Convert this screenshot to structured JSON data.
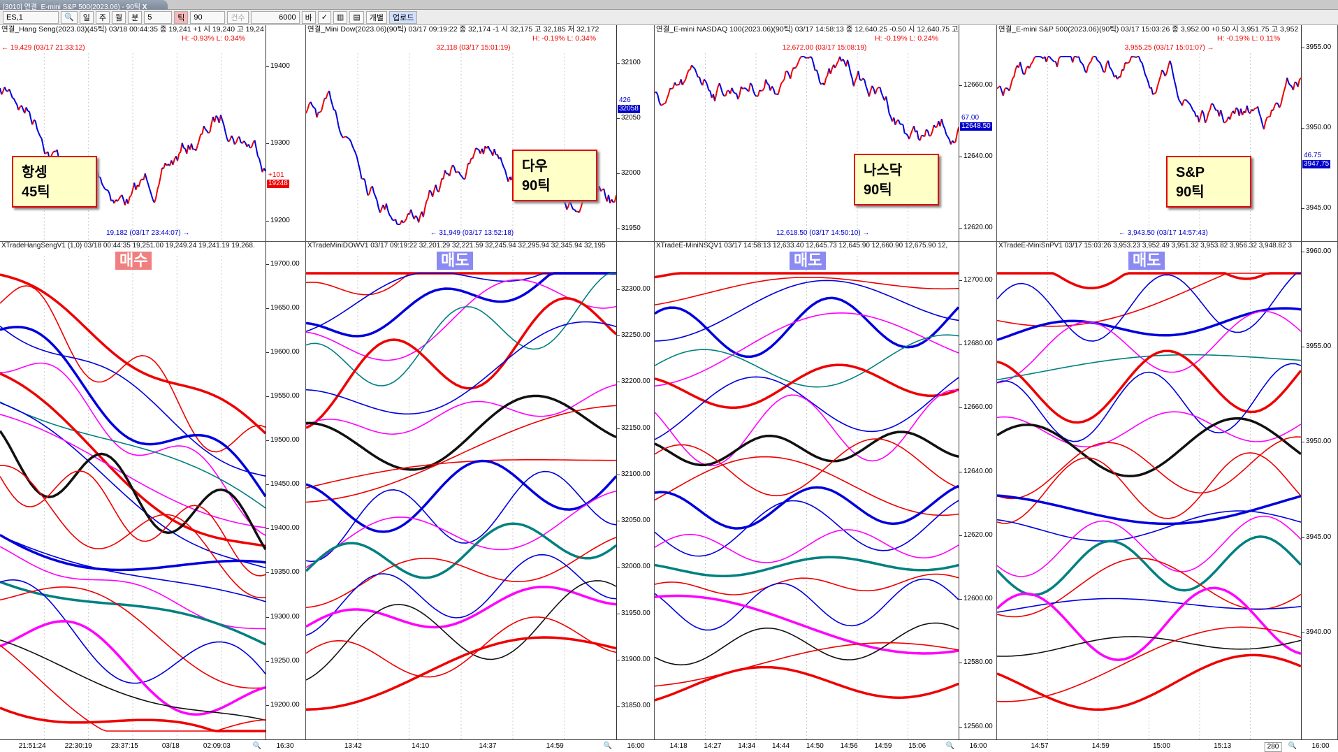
{
  "window": {
    "title": "[3010] 연결_E-mini S&P 500(2023.06) - 90틱",
    "close_label": "X"
  },
  "toolbar": {
    "symbol": "ES,1",
    "day": "일",
    "week": "주",
    "month": "월",
    "minute": "분",
    "minute_val": "5",
    "tick": "틱",
    "tick_val": "90",
    "count": "건수",
    "count_val": "6000",
    "bar": "바",
    "individual": "개별",
    "upload": "업로드"
  },
  "colors": {
    "up": "#ff0000",
    "down": "#0000ff",
    "buy": "#f08080",
    "sell": "#8080f0"
  },
  "panels": [
    {
      "header": "연결_Hang Seng(2023.03)(45틱) 03/18 00:44:35  종 19,241 +1  시 19,240 고 19,24",
      "hl": "H: -0.93%  L: 0.34%",
      "high_note": "← 19,429 (03/17 21:33:12)",
      "low_note": "19,182 (03/17 23:44:07) →",
      "label1": "항셍",
      "label2": "45틱",
      "price_tag": "19248",
      "price_sub": "+101",
      "upper_ticks": [
        "19400",
        "19300",
        "19200"
      ],
      "upper_range": [
        19173,
        19453
      ],
      "ind_header": "XTradeHangSengV1  (1,0) 03/18 00:44:35 19,251.00 19,249.24 19,241.19 19,268.",
      "signal": "매수",
      "signal_type": "buy",
      "lower_ticks": [
        "19700.00",
        "19650.00",
        "19600.00",
        "19550.00",
        "19500.00",
        "19450.00",
        "19400.00",
        "19350.00",
        "19300.00",
        "19250.00",
        "19200.00"
      ],
      "lower_range": [
        19161,
        19725
      ],
      "times": [
        "21:51:24",
        "22:30:19",
        "23:37:15",
        "03/18",
        "02:09:03"
      ],
      "axis_end": "16:30"
    },
    {
      "header": "연결_Mini Dow(2023.06)(90틱) 03/17 09:19:22  종 32,174 -1  시 32,175 고 32,185 저 32,172",
      "hl": "H: -0.19%  L: 0.34%",
      "high_note": "32,118 (03/17 15:01:19)",
      "low_note": "← 31,949 (03/17 13:52:18)",
      "label1": "다우",
      "label2": "90틱",
      "price_tag": "32058",
      "price_sub": "426",
      "upper_ticks": [
        "32100",
        "32050",
        "32000",
        "31950"
      ],
      "upper_range": [
        31938,
        32134
      ],
      "ind_header": "XTradeMiniDOWV1  03/17 09:19:22 32,201.29 32,221.59 32,245.94 32,295.94 32,345.94 32,195",
      "signal": "매도",
      "signal_type": "sell",
      "lower_ticks": [
        "32300.00",
        "32250.00",
        "32200.00",
        "32150.00",
        "32100.00",
        "32050.00",
        "32000.00",
        "31950.00",
        "31900.00",
        "31850.00"
      ],
      "lower_range": [
        31814,
        32351
      ],
      "times": [
        "13:42",
        "14:10",
        "14:37",
        "14:59"
      ],
      "axis_end": "16:00"
    },
    {
      "header": "연결_E-mini NASDAQ 100(2023.06)(90틱) 03/17 14:58:13  종 12,640.25 -0.50  시 12,640.75 고",
      "hl": "H: -0.19%  L: 0.24%",
      "high_note": "12,672.00 (03/17 15:08:19)",
      "low_note": "12,618.50 (03/17 14:50:10) →",
      "label1": "나스닥",
      "label2": "90틱",
      "price_tag": "12648.50",
      "price_sub": "67.00",
      "upper_ticks": [
        "12660.00",
        "12640.00",
        "12620.00"
      ],
      "upper_range": [
        12616,
        12677
      ],
      "ind_header": "XTradeE-MiniNSQV1  03/17 14:58:13 12,633.40 12,645.73 12,645.90 12,660.90 12,675.90 12,",
      "signal": "매도",
      "signal_type": "sell",
      "lower_ticks": [
        "12700.00",
        "12680.00",
        "12660.00",
        "12640.00",
        "12620.00",
        "12600.00",
        "12580.00",
        "12560.00"
      ],
      "lower_range": [
        12556,
        12712
      ],
      "times": [
        "14:18",
        "14:27",
        "14:34",
        "14:44",
        "14:50",
        "14:56",
        "14:59",
        "15:06"
      ],
      "axis_end": "16:00"
    },
    {
      "header": "연결_E-mini S&P 500(2023.06)(90틱) 03/17 15:03:26  종 3,952.00 +0.50  시 3,951.75 고 3,952",
      "hl": "H: -0.19%  L: 0.11%",
      "high_note": "3,955.25 (03/17 15:01:07) →",
      "low_note": "← 3,943.50 (03/17 14:57:43)",
      "label1": "S&P",
      "label2": "90틱",
      "price_tag": "3947.75",
      "price_sub": "46.75",
      "upper_ticks": [
        "3955.00",
        "3950.00",
        "3945.00"
      ],
      "upper_range": [
        3942.9,
        3956.4
      ],
      "ind_header": "XTradeE-MiniSnPV1  03/17 15:03:26 3,953.23 3,952.49 3,951.32 3,953.82 3,956.32 3,948.82 3",
      "signal": "매도",
      "signal_type": "sell",
      "lower_ticks": [
        "3960.00",
        "3955.00",
        "3950.00",
        "3945.00",
        "3940.00"
      ],
      "lower_range": [
        3934.4,
        3960.5
      ],
      "times": [
        "14:57",
        "14:59",
        "15:00",
        "15:13"
      ],
      "axis_end": "16:00",
      "bar_count": "280"
    }
  ]
}
